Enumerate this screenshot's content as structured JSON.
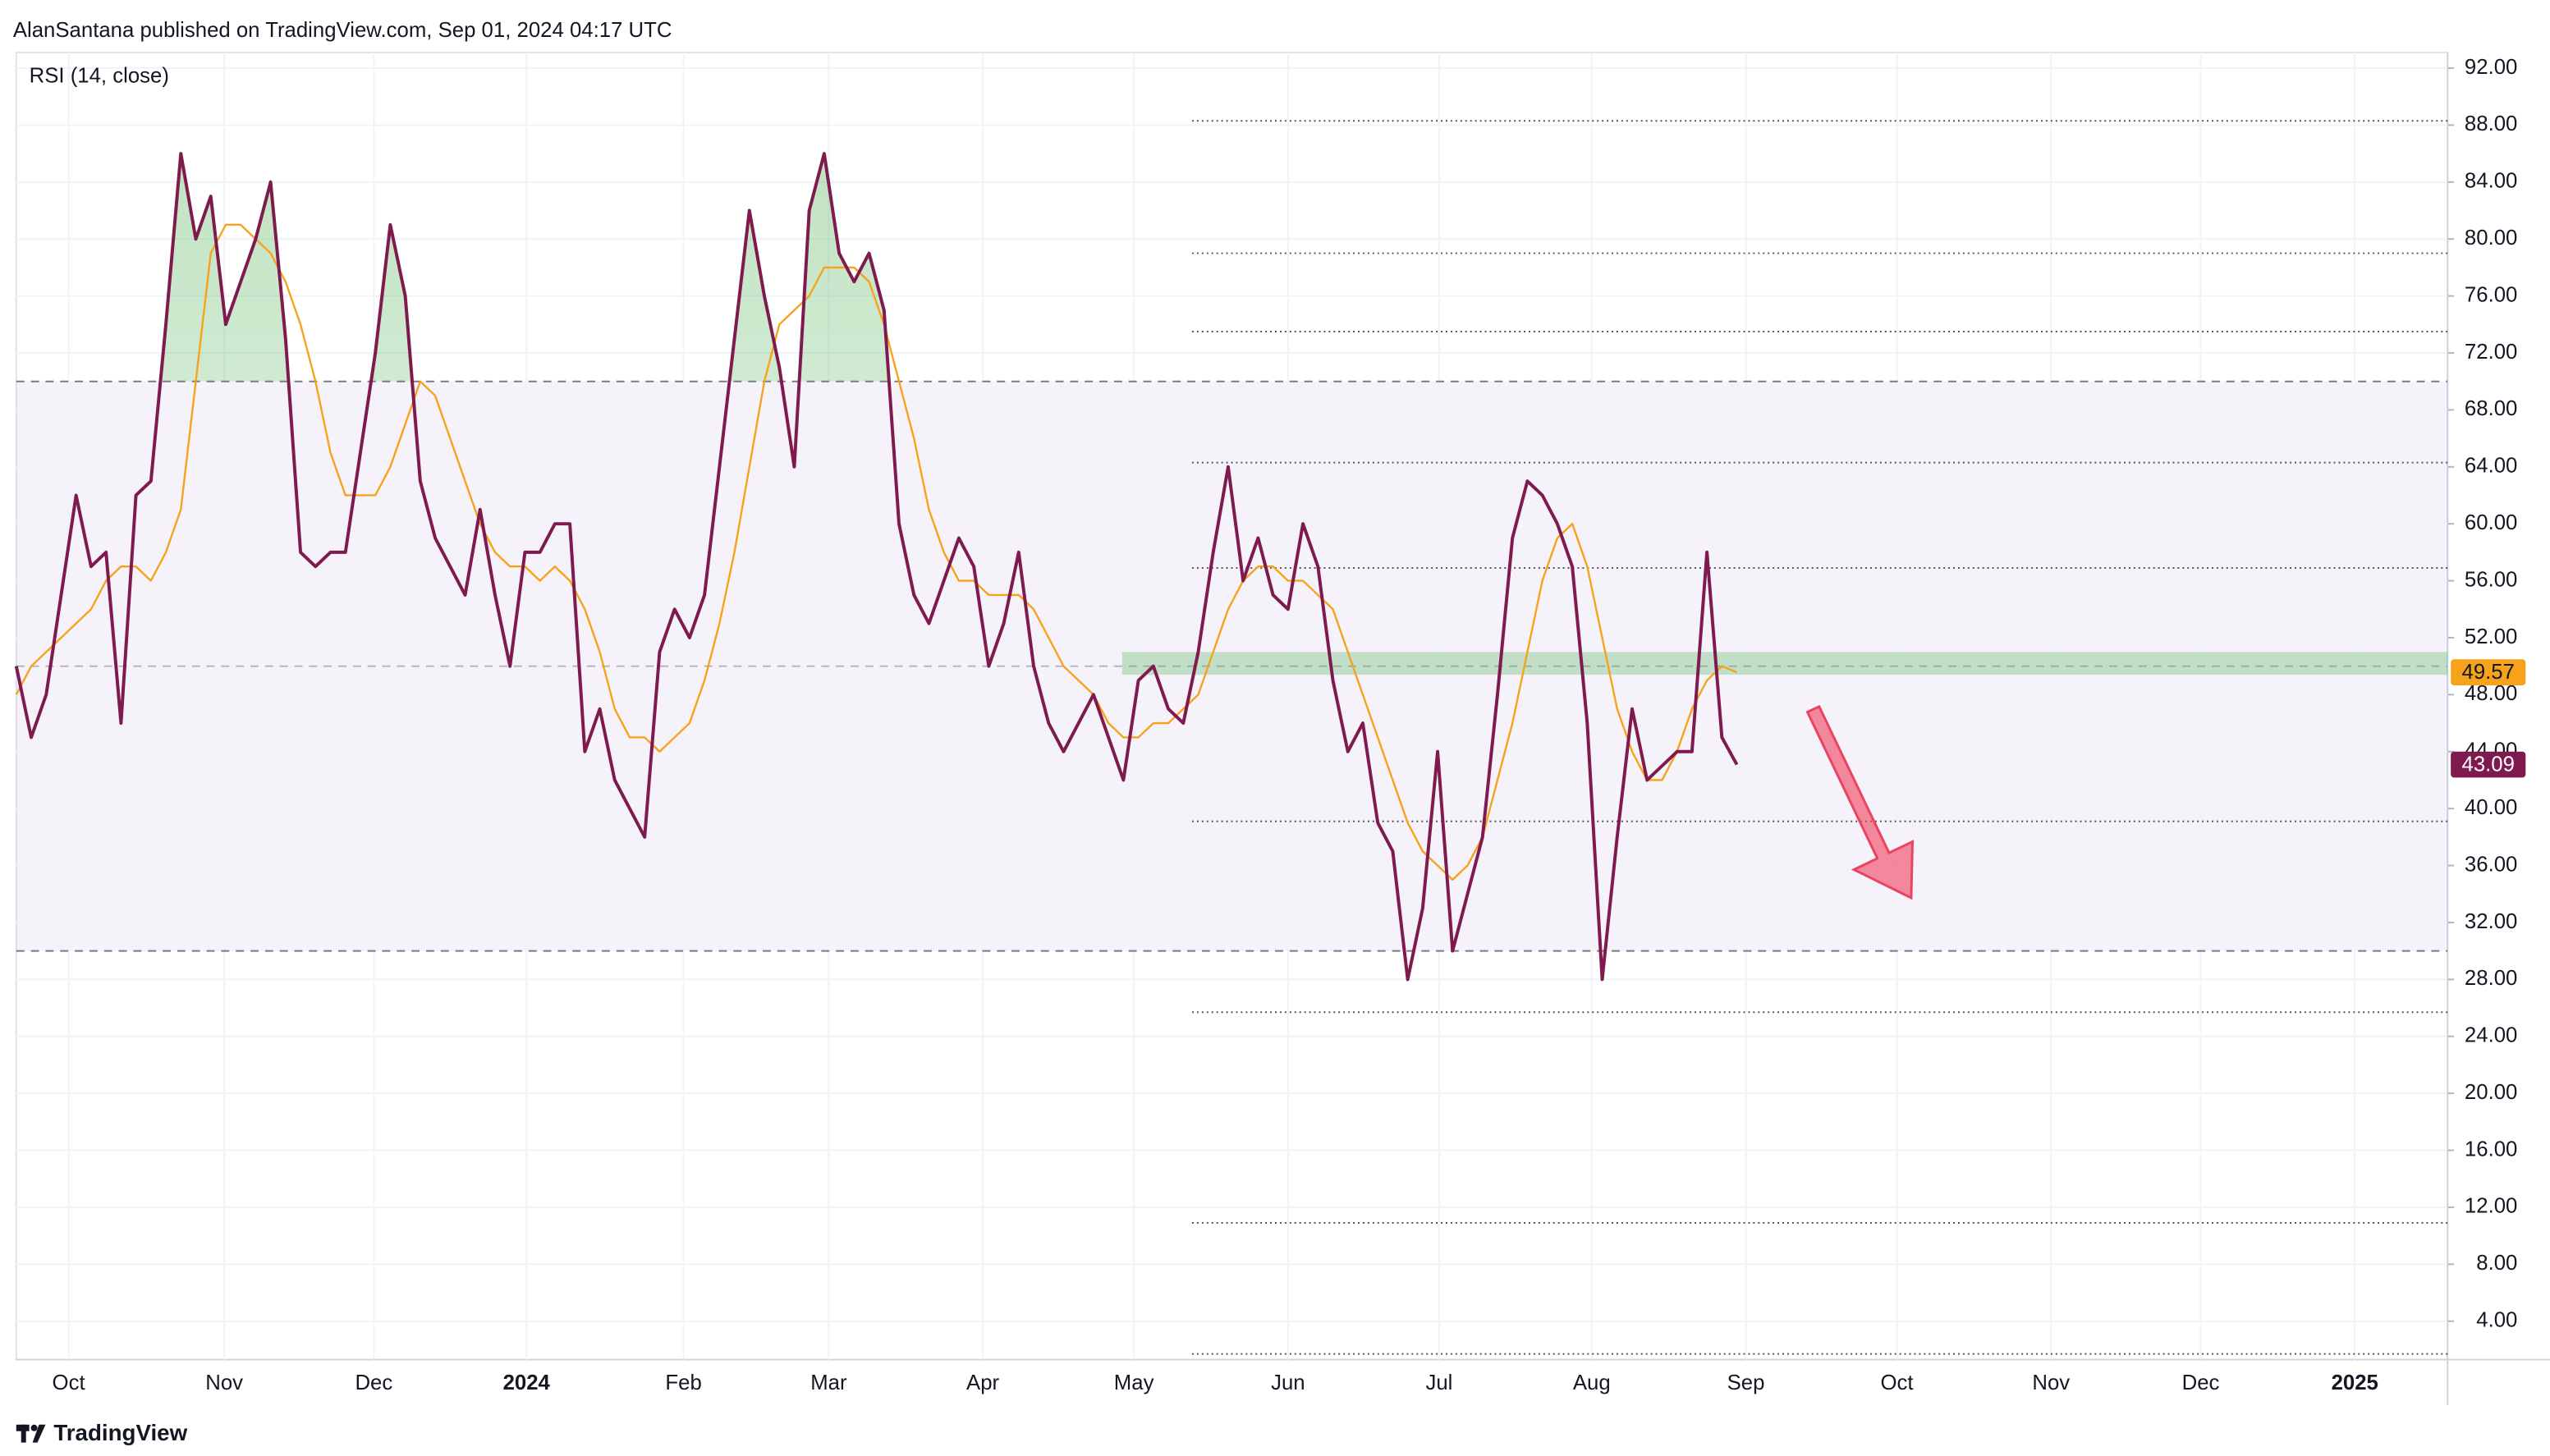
{
  "header": "AlanSantana published on TradingView.com, Sep 01, 2024 04:17 UTC",
  "footer": "TradingView",
  "chart_data": {
    "type": "line",
    "title": "RSI (14, close)",
    "xlim": [
      0,
      162.5
    ],
    "xticks": [
      {
        "value": 3.5,
        "label": "Oct"
      },
      {
        "value": 13.9,
        "label": "Nov"
      },
      {
        "value": 23.9,
        "label": "Dec"
      },
      {
        "value": 34.1,
        "label": "2024"
      },
      {
        "value": 44.6,
        "label": "Feb"
      },
      {
        "value": 54.3,
        "label": "Mar"
      },
      {
        "value": 64.6,
        "label": "Apr"
      },
      {
        "value": 74.7,
        "label": "May"
      },
      {
        "value": 85,
        "label": "Jun"
      },
      {
        "value": 95.1,
        "label": "Jul"
      },
      {
        "value": 105.3,
        "label": "Aug"
      },
      {
        "value": 115.6,
        "label": "Sep"
      },
      {
        "value": 125.7,
        "label": "Oct"
      },
      {
        "value": 136,
        "label": "Nov"
      },
      {
        "value": 146,
        "label": "Dec"
      },
      {
        "value": 156.3,
        "label": "2025"
      }
    ],
    "ylim": [
      1.3,
      93.1
    ],
    "yticks": [
      {
        "value": 4,
        "label": "4.00"
      },
      {
        "value": 8,
        "label": "8.00"
      },
      {
        "value": 12,
        "label": "12.00"
      },
      {
        "value": 16,
        "label": "16.00"
      },
      {
        "value": 20,
        "label": "20.00"
      },
      {
        "value": 24,
        "label": "24.00"
      },
      {
        "value": 28,
        "label": "28.00"
      },
      {
        "value": 32,
        "label": "32.00"
      },
      {
        "value": 36,
        "label": "36.00"
      },
      {
        "value": 40,
        "label": "40.00"
      },
      {
        "value": 44,
        "label": "44.00"
      },
      {
        "value": 48,
        "label": "48.00"
      },
      {
        "value": 52,
        "label": "52.00"
      },
      {
        "value": 56,
        "label": "56.00"
      },
      {
        "value": 60,
        "label": "60.00"
      },
      {
        "value": 64,
        "label": "64.00"
      },
      {
        "value": 68,
        "label": "68.00"
      },
      {
        "value": 72,
        "label": "72.00"
      },
      {
        "value": 76,
        "label": "76.00"
      },
      {
        "value": 80,
        "label": "80.00"
      },
      {
        "value": 84,
        "label": "84.00"
      },
      {
        "value": 88,
        "label": "88.00"
      },
      {
        "value": 92,
        "label": "92.00"
      }
    ],
    "grid": true,
    "band": [
      30,
      70
    ],
    "midline": 50,
    "fib_levels": [
      88.3,
      79,
      73.5,
      64.3,
      56.9,
      39.1,
      25.7,
      10.9,
      1.7
    ],
    "support_zone": [
      49.4,
      51
    ],
    "series": [
      {
        "color": "#7e1a4e",
        "values": [
          50,
          45,
          48,
          55,
          62,
          57,
          58,
          46,
          62,
          63,
          74,
          86,
          80,
          83,
          74,
          77,
          80,
          84,
          73,
          58,
          57,
          58,
          58,
          65,
          72,
          81,
          76,
          63,
          59,
          57,
          55,
          61,
          55,
          50,
          58,
          58,
          60,
          60,
          44,
          47,
          42,
          40,
          38,
          51,
          54,
          52,
          55,
          64,
          73,
          82,
          76,
          71,
          64,
          82,
          86,
          79,
          77,
          79,
          75,
          60,
          55,
          53,
          56,
          59,
          57,
          50,
          53,
          58,
          50,
          46,
          44,
          46,
          48,
          45,
          42,
          49,
          50,
          47,
          46,
          51,
          58,
          64,
          56,
          59,
          55,
          54,
          60,
          57,
          49,
          44,
          46,
          39,
          37,
          28,
          33,
          44,
          30,
          34,
          38,
          48,
          59,
          63,
          62,
          60,
          57,
          46,
          28,
          38,
          47,
          42,
          43,
          44,
          44,
          58,
          45,
          43.09
        ]
      },
      {
        "color": "#f7a21b",
        "values": [
          48,
          50,
          51,
          52,
          53,
          54,
          56,
          57,
          57,
          56,
          58,
          61,
          70,
          79,
          81,
          81,
          80,
          79,
          77,
          74,
          70,
          65,
          62,
          62,
          62,
          64,
          67,
          70,
          69,
          66,
          63,
          60,
          58,
          57,
          57,
          56,
          57,
          56,
          54,
          51,
          47,
          45,
          45,
          44,
          45,
          46,
          49,
          53,
          58,
          64,
          70,
          74,
          75,
          76,
          78,
          78,
          78,
          77,
          74,
          70,
          66,
          61,
          58,
          56,
          56,
          55,
          55,
          55,
          54,
          52,
          50,
          49,
          48,
          46,
          45,
          45,
          46,
          46,
          47,
          48,
          51,
          54,
          56,
          57,
          57,
          56,
          56,
          55,
          54,
          51,
          48,
          45,
          42,
          39,
          37,
          36,
          35,
          36,
          38,
          42,
          46,
          51,
          56,
          59,
          60,
          57,
          52,
          47,
          44,
          42,
          42,
          44,
          47,
          49,
          50,
          49.57
        ]
      }
    ]
  }
}
